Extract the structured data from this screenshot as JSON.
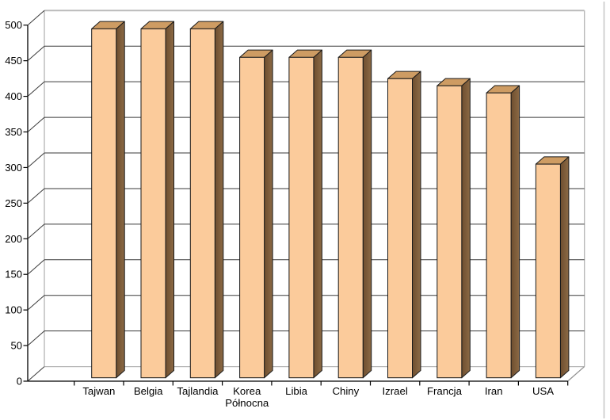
{
  "chart_data": {
    "type": "bar",
    "style": "3d-column",
    "title": "",
    "xlabel": "",
    "ylabel": "",
    "legend": false,
    "grid": true,
    "categories": [
      "Tajwan",
      "Belgia",
      "Tajlandia",
      "Korea Północna",
      "Libia",
      "Chiny",
      "Izrael",
      "Francja",
      "Iran",
      "USA"
    ],
    "values": [
      490,
      490,
      490,
      450,
      450,
      450,
      420,
      410,
      400,
      300
    ],
    "y_axis": {
      "min": 0,
      "max": 500,
      "step": 50,
      "tick_labels": [
        "0",
        "50",
        "100",
        "150",
        "200",
        "250",
        "300",
        "350",
        "400",
        "450",
        "500"
      ]
    },
    "colors": {
      "background": "#FFFFFF",
      "bar_front": "#FBCB9B",
      "bar_side_dark": "#6E4E2F",
      "bar_side_light": "#8C6A45",
      "bar_top": "#CE9C63",
      "bar_outline": "#1A1A1A",
      "gridline": "#3A3A3A",
      "axis": "#000000",
      "wall_edge": "#B8B8B8",
      "floor_edge": "#8F8F8F",
      "text": "#000000",
      "window_border": "#C9C9C9"
    }
  }
}
